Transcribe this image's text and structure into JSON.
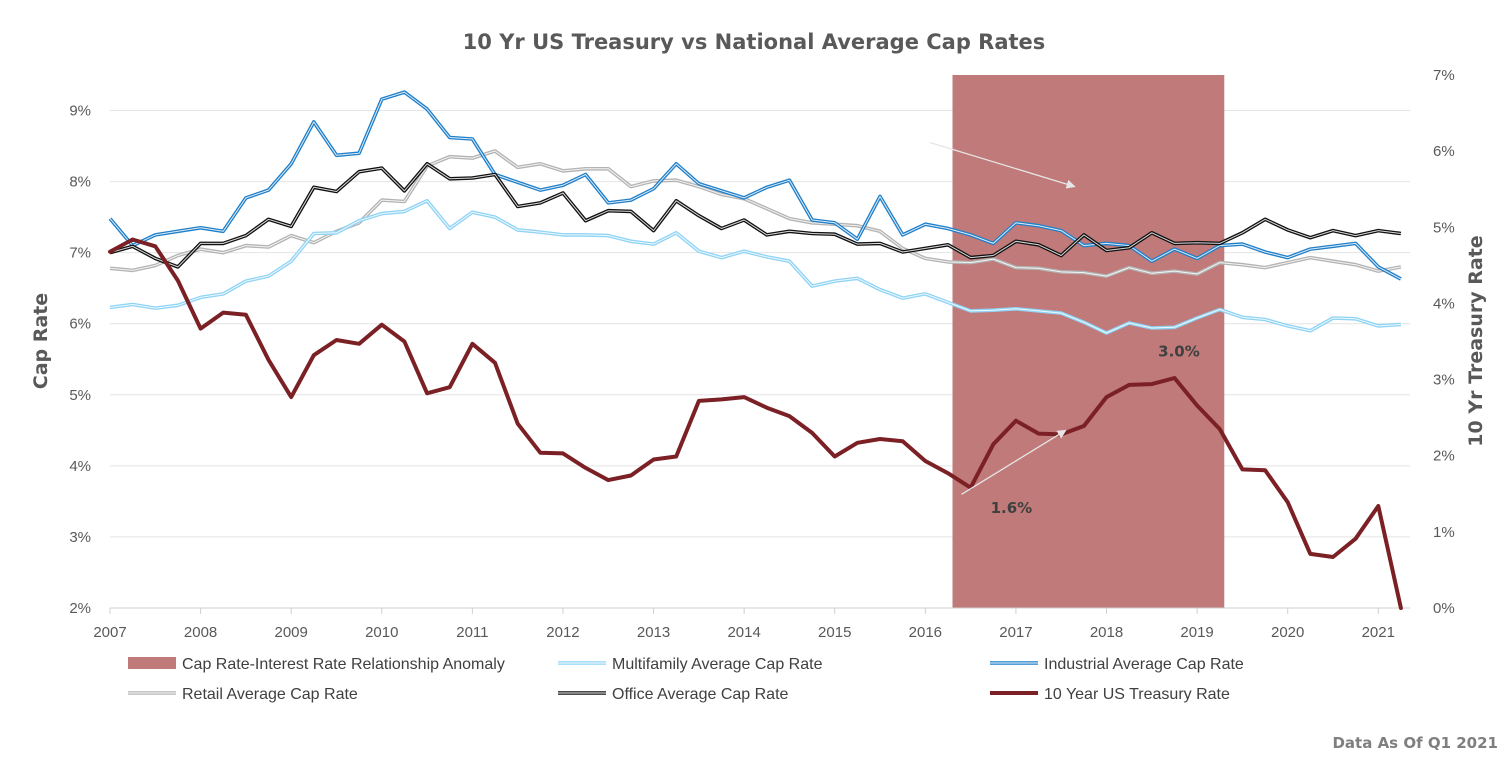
{
  "chart_data": {
    "type": "line",
    "title": "10 Yr US Treasury vs National Average Cap Rates",
    "ylabel_left": "Cap Rate",
    "ylabel_right": "10 Yr Treasury Rate",
    "footer": "Data As Of Q1 2021",
    "left_axis": {
      "min": 2,
      "max": 9.5,
      "ticks": [
        "2%",
        "3%",
        "4%",
        "5%",
        "6%",
        "7%",
        "8%",
        "9%"
      ],
      "tick_values": [
        2,
        3,
        4,
        5,
        6,
        7,
        8,
        9
      ]
    },
    "right_axis": {
      "min": 0,
      "max": 7,
      "ticks": [
        "0%",
        "1%",
        "2%",
        "3%",
        "4%",
        "5%",
        "6%",
        "7%"
      ],
      "tick_values": [
        0,
        1,
        2,
        3,
        4,
        5,
        6,
        7
      ]
    },
    "x_axis": {
      "min": 2007.0,
      "max": 2021.35,
      "ticks": [
        "2007",
        "2008",
        "2009",
        "2010",
        "2011",
        "2012",
        "2013",
        "2014",
        "2015",
        "2016",
        "2017",
        "2018",
        "2019",
        "2020",
        "2021"
      ],
      "tick_values": [
        2007,
        2008,
        2009,
        2010,
        2011,
        2012,
        2013,
        2014,
        2015,
        2016,
        2017,
        2018,
        2019,
        2020,
        2021
      ]
    },
    "grid": true,
    "legend_position": "bottom",
    "x_quarters": [
      2007.0,
      2007.25,
      2007.5,
      2007.75,
      2008.0,
      2008.25,
      2008.5,
      2008.75,
      2009.0,
      2009.25,
      2009.5,
      2009.75,
      2010.0,
      2010.25,
      2010.5,
      2010.75,
      2011.0,
      2011.25,
      2011.5,
      2011.75,
      2012.0,
      2012.25,
      2012.5,
      2012.75,
      2013.0,
      2013.25,
      2013.5,
      2013.75,
      2014.0,
      2014.25,
      2014.5,
      2014.75,
      2015.0,
      2015.25,
      2015.5,
      2015.75,
      2016.0,
      2016.25,
      2016.5,
      2016.75,
      2017.0,
      2017.25,
      2017.5,
      2017.75,
      2018.0,
      2018.25,
      2018.5,
      2018.75,
      2019.0,
      2019.25,
      2019.5,
      2019.75,
      2020.0,
      2020.25,
      2020.5,
      2020.75,
      2021.0,
      2021.25
    ],
    "shaded_region": {
      "label": "Cap Rate-Interest Rate Relationship Anomaly",
      "x_start": 2016.3,
      "x_end": 2019.3,
      "color": "#c07a7a"
    },
    "series": [
      {
        "name": "Multifamily Average Cap Rate",
        "axis": "left",
        "color": "#8fd3f5",
        "values": [
          6.23,
          6.27,
          6.22,
          6.26,
          6.37,
          6.42,
          6.6,
          6.67,
          6.88,
          7.27,
          7.28,
          7.45,
          7.55,
          7.58,
          7.73,
          7.34,
          7.57,
          7.5,
          7.32,
          7.29,
          7.25,
          7.25,
          7.24,
          7.16,
          7.12,
          7.28,
          7.02,
          6.93,
          7.02,
          6.94,
          6.88,
          6.53,
          6.6,
          6.64,
          6.48,
          6.36,
          6.42,
          6.3,
          6.18,
          6.19,
          6.21,
          6.18,
          6.15,
          6.02,
          5.87,
          6.01,
          5.94,
          5.95,
          6.08,
          6.2,
          6.09,
          6.06,
          5.97,
          5.9,
          6.08,
          6.07,
          5.97,
          5.99
        ]
      },
      {
        "name": "Industrial Average Cap Rate",
        "axis": "left",
        "color": "#1f7fc9",
        "values": [
          7.48,
          7.1,
          7.25,
          7.3,
          7.35,
          7.3,
          7.77,
          7.88,
          8.25,
          8.84,
          8.37,
          8.4,
          9.16,
          9.26,
          9.02,
          8.62,
          8.6,
          8.1,
          7.99,
          7.88,
          7.95,
          8.1,
          7.7,
          7.74,
          7.9,
          8.25,
          7.97,
          7.87,
          7.77,
          7.92,
          8.02,
          7.46,
          7.42,
          7.19,
          7.79,
          7.25,
          7.4,
          7.34,
          7.25,
          7.13,
          7.42,
          7.38,
          7.31,
          7.1,
          7.13,
          7.1,
          6.88,
          7.05,
          6.92,
          7.1,
          7.12,
          7.01,
          6.93,
          7.05,
          7.09,
          7.13,
          6.8,
          6.63
        ]
      },
      {
        "name": "Retail Average Cap Rate",
        "axis": "left",
        "color": "#b3b3b3",
        "values": [
          6.78,
          6.75,
          6.82,
          6.96,
          7.05,
          7.0,
          7.1,
          7.08,
          7.24,
          7.14,
          7.3,
          7.42,
          7.74,
          7.72,
          8.22,
          8.35,
          8.33,
          8.43,
          8.2,
          8.25,
          8.15,
          8.18,
          8.18,
          7.93,
          8.01,
          8.02,
          7.93,
          7.82,
          7.76,
          7.62,
          7.48,
          7.42,
          7.4,
          7.38,
          7.3,
          7.06,
          6.92,
          6.87,
          6.86,
          6.91,
          6.79,
          6.78,
          6.73,
          6.72,
          6.67,
          6.79,
          6.71,
          6.74,
          6.7,
          6.86,
          6.83,
          6.79,
          6.86,
          6.93,
          6.88,
          6.83,
          6.74,
          6.8
        ]
      },
      {
        "name": "Office Average Cap Rate",
        "axis": "left",
        "color": "#111111",
        "values": [
          7.0,
          7.09,
          6.92,
          6.8,
          7.13,
          7.13,
          7.24,
          7.47,
          7.37,
          7.92,
          7.86,
          8.14,
          8.19,
          7.87,
          8.25,
          8.04,
          8.05,
          8.1,
          7.65,
          7.7,
          7.84,
          7.45,
          7.59,
          7.58,
          7.31,
          7.73,
          7.52,
          7.34,
          7.46,
          7.25,
          7.3,
          7.27,
          7.26,
          7.12,
          7.13,
          7.01,
          7.06,
          7.11,
          6.93,
          6.96,
          7.16,
          7.11,
          6.96,
          7.25,
          7.03,
          7.07,
          7.28,
          7.13,
          7.14,
          7.13,
          7.28,
          7.47,
          7.32,
          7.21,
          7.31,
          7.24,
          7.31,
          7.27
        ]
      },
      {
        "name": "10 Year US Treasury Rate",
        "axis": "right",
        "color": "#7b2025",
        "values": [
          4.68,
          4.84,
          4.75,
          4.3,
          3.67,
          3.88,
          3.85,
          3.26,
          2.77,
          3.32,
          3.52,
          3.47,
          3.72,
          3.5,
          2.82,
          2.9,
          3.47,
          3.22,
          2.42,
          2.04,
          2.03,
          1.84,
          1.68,
          1.74,
          1.95,
          1.99,
          2.72,
          2.74,
          2.77,
          2.63,
          2.52,
          2.3,
          1.99,
          2.17,
          2.22,
          2.19,
          1.93,
          1.77,
          1.58,
          2.15,
          2.46,
          2.29,
          2.28,
          2.39,
          2.77,
          2.93,
          2.94,
          3.02,
          2.66,
          2.35,
          1.82,
          1.81,
          1.39,
          0.71,
          0.67,
          0.91,
          1.34,
          0.0
        ]
      }
    ],
    "annotations": [
      {
        "text": "1.6%",
        "x": 2016.95,
        "y_right": 1.25
      },
      {
        "text": "3.0%",
        "x": 2018.8,
        "y_right": 3.3
      }
    ],
    "arrows": [
      {
        "from_x": 2016.05,
        "from_y_left": 8.55,
        "to_x": 2017.65,
        "to_y_left": 7.93
      },
      {
        "from_x": 2016.4,
        "from_y_left": 3.6,
        "to_x": 2017.55,
        "to_y_left": 4.5
      }
    ]
  }
}
